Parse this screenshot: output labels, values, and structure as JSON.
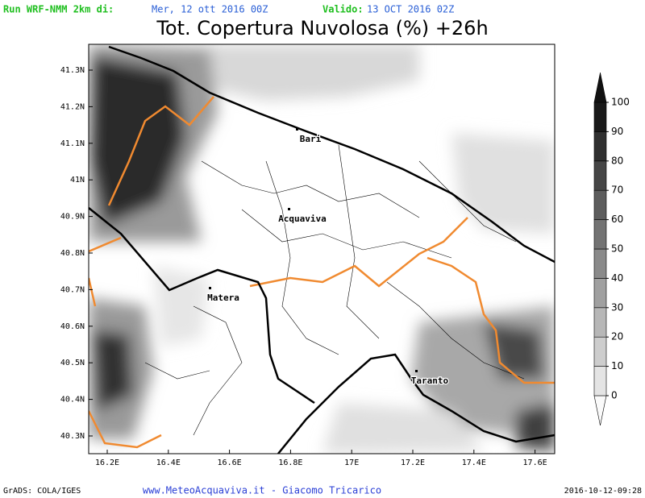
{
  "header": {
    "run": "Run WRF-NMM 2km di:",
    "init": "Mer, 12 ott 2016 00Z",
    "valid_label": "Valido:",
    "valid": "13 OCT 2016 02Z"
  },
  "title": "Tot. Copertura Nuvolosa (%) +26h",
  "map": {
    "lat_ticks": [
      "41.3N",
      "41.2N",
      "41.1N",
      "41N",
      "40.9N",
      "40.8N",
      "40.7N",
      "40.6N",
      "40.5N",
      "40.4N",
      "40.3N"
    ],
    "lon_ticks": [
      "16.2E",
      "16.4E",
      "16.6E",
      "16.8E",
      "17E",
      "17.2E",
      "17.4E",
      "17.6E"
    ],
    "places": [
      "Bari",
      "Acquaviva",
      "Matera",
      "Taranto"
    ]
  },
  "colorbar": {
    "levels": [
      0,
      10,
      20,
      30,
      40,
      50,
      60,
      70,
      80,
      90,
      100
    ]
  },
  "footer": {
    "left": "GrADS: COLA/IGES",
    "center": "www.MeteoAcquaviva.it - Giacomo Tricarico",
    "right": "2016-10-12-09:28"
  }
}
